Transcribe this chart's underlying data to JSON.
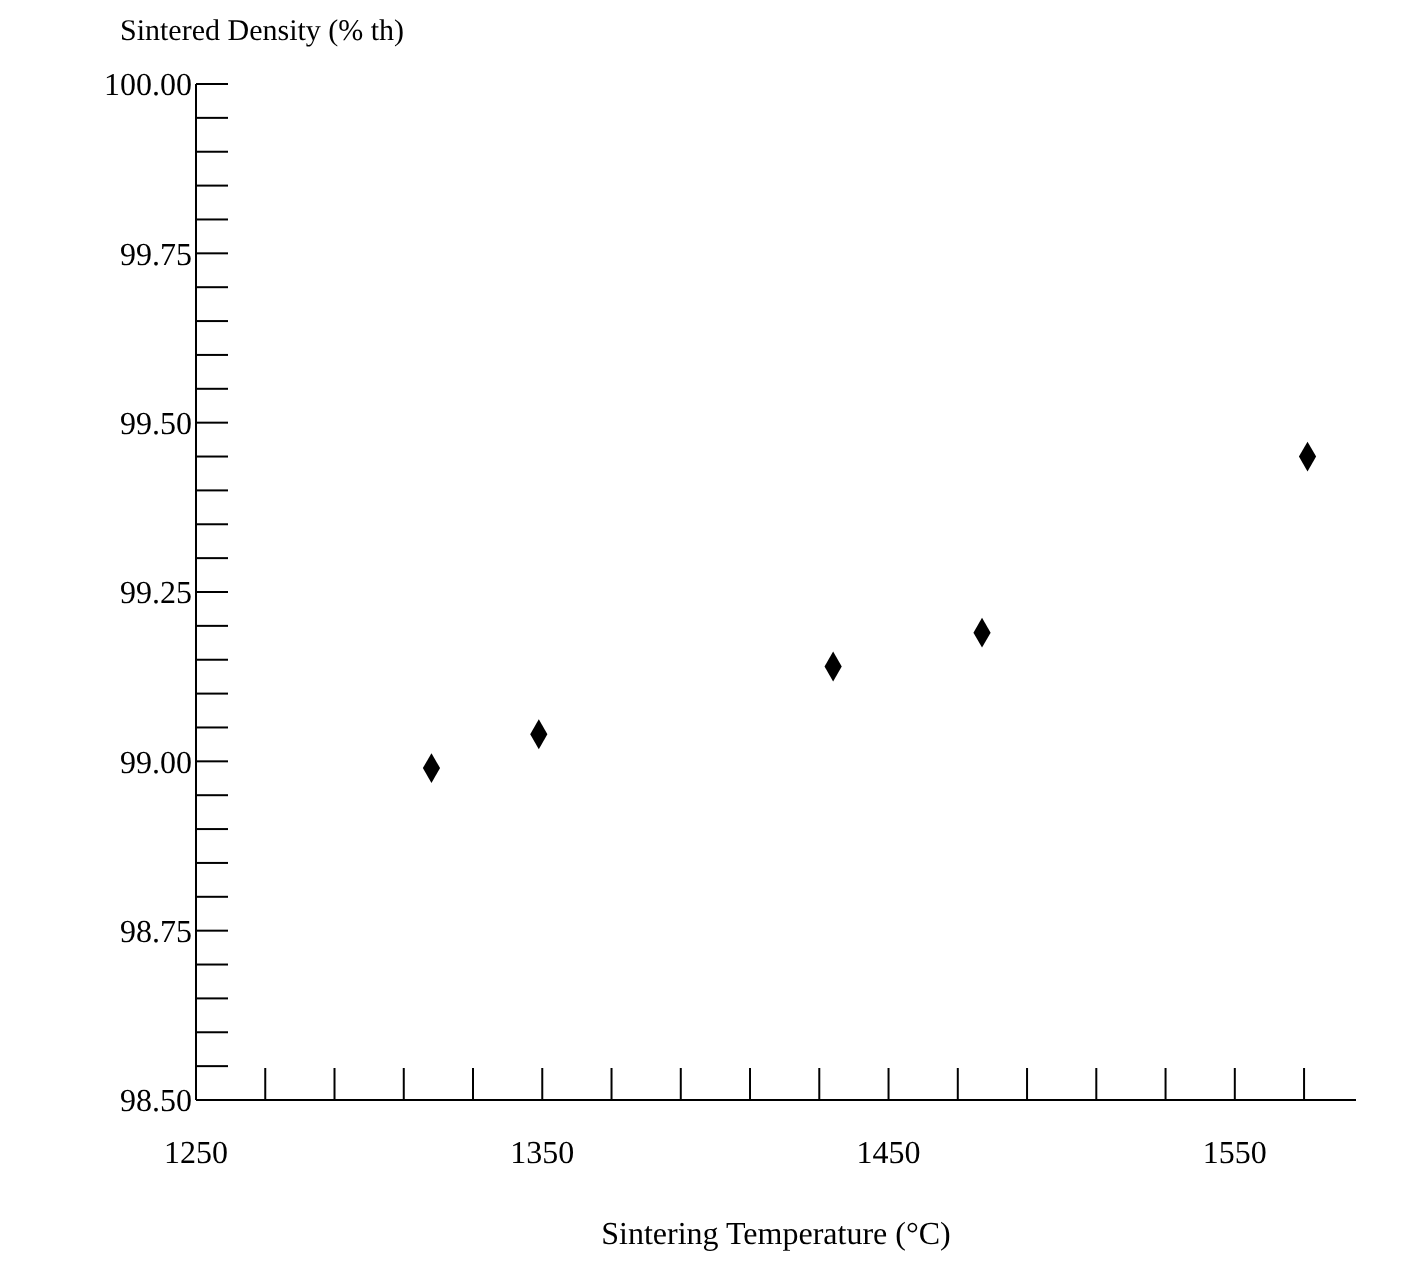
{
  "chart_data": {
    "type": "scatter",
    "xlabel": "Sintering Temperature (°C)",
    "ylabel": "Sintered Density (% th)",
    "x": [
      1318,
      1349,
      1434,
      1477,
      1571
    ],
    "series": [
      {
        "color": "#000000",
        "values": [
          98.99,
          99.04,
          99.14,
          99.19,
          99.45
        ]
      }
    ],
    "marker": "diamond",
    "grid": false,
    "xlim": [
      1250,
      1585
    ],
    "xticks": [
      1250,
      {
        "value": 1270,
        "label": null
      },
      {
        "value": 1290,
        "label": null
      },
      {
        "value": 1310,
        "label": null
      },
      {
        "value": 1330,
        "label": null
      },
      1350,
      {
        "value": 1370,
        "label": null
      },
      {
        "value": 1390,
        "label": null
      },
      {
        "value": 1410,
        "label": null
      },
      {
        "value": 1430,
        "label": null
      },
      1450,
      {
        "value": 1470,
        "label": null
      },
      {
        "value": 1490,
        "label": null
      },
      {
        "value": 1510,
        "label": null
      },
      {
        "value": 1530,
        "label": null
      },
      1550,
      {
        "value": 1570,
        "label": null
      }
    ],
    "ylim": [
      98.5,
      100
    ],
    "yticks": [
      {
        "value": 98.5,
        "label": "98.50"
      },
      {
        "value": 98.55,
        "label": null
      },
      {
        "value": 98.6,
        "label": null
      },
      {
        "value": 98.65,
        "label": null
      },
      {
        "value": 98.7,
        "label": null
      },
      {
        "value": 98.75,
        "label": "98.75"
      },
      {
        "value": 98.8,
        "label": null
      },
      {
        "value": 98.85,
        "label": null
      },
      {
        "value": 98.9,
        "label": null
      },
      {
        "value": 98.95,
        "label": null
      },
      {
        "value": 99,
        "label": "99.00"
      },
      {
        "value": 99.05,
        "label": null
      },
      {
        "value": 99.1,
        "label": null
      },
      {
        "value": 99.15,
        "label": null
      },
      {
        "value": 99.2,
        "label": null
      },
      {
        "value": 99.25,
        "label": "99.25"
      },
      {
        "value": 99.3,
        "label": null
      },
      {
        "value": 99.35,
        "label": null
      },
      {
        "value": 99.4,
        "label": null
      },
      {
        "value": 99.45,
        "label": null
      },
      {
        "value": 99.5,
        "label": "99.50"
      },
      {
        "value": 99.55,
        "label": null
      },
      {
        "value": 99.6,
        "label": null
      },
      {
        "value": 99.65,
        "label": null
      },
      {
        "value": 99.7,
        "label": null
      },
      {
        "value": 99.75,
        "label": "99.75"
      },
      {
        "value": 99.8,
        "label": null
      },
      {
        "value": 99.85,
        "label": null
      },
      {
        "value": 99.9,
        "label": null
      },
      {
        "value": 99.95,
        "label": null
      },
      {
        "value": 100,
        "label": "100.00"
      }
    ]
  }
}
